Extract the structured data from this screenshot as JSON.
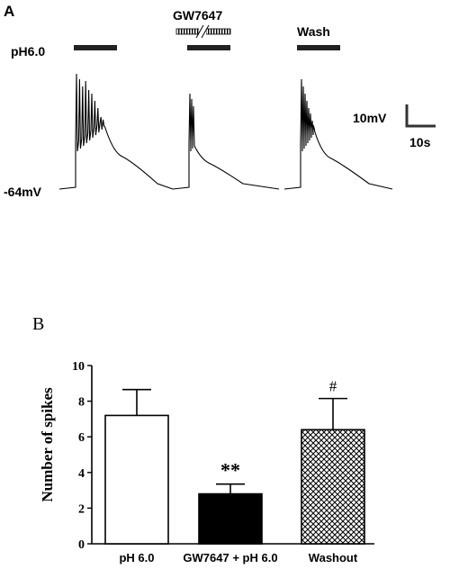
{
  "panel_a": {
    "label": "A",
    "condition_labels": {
      "ph": "pH6.0",
      "drug": "GW7647",
      "wash": "Wash"
    },
    "resting_potential_label": "-64mV",
    "scale_bar": {
      "voltage_label": "10mV",
      "time_label": "10s"
    }
  },
  "panel_b": {
    "label": "B"
  },
  "chart_data": {
    "type": "bar",
    "categories": [
      "pH 6.0",
      "GW7647 + pH 6.0",
      "Washout"
    ],
    "values": [
      7.2,
      2.8,
      6.4
    ],
    "errors": [
      1.45,
      0.55,
      1.75
    ],
    "annotations": [
      "",
      "**",
      "#"
    ],
    "fills": [
      "#ffffff",
      "#000000",
      "crosshatch"
    ],
    "title": "",
    "xlabel": "",
    "ylabel": "Number of spikes",
    "ylim": [
      0,
      10
    ],
    "yticks": [
      0,
      2,
      4,
      6,
      8,
      10
    ],
    "grid": false,
    "legend": "none"
  }
}
